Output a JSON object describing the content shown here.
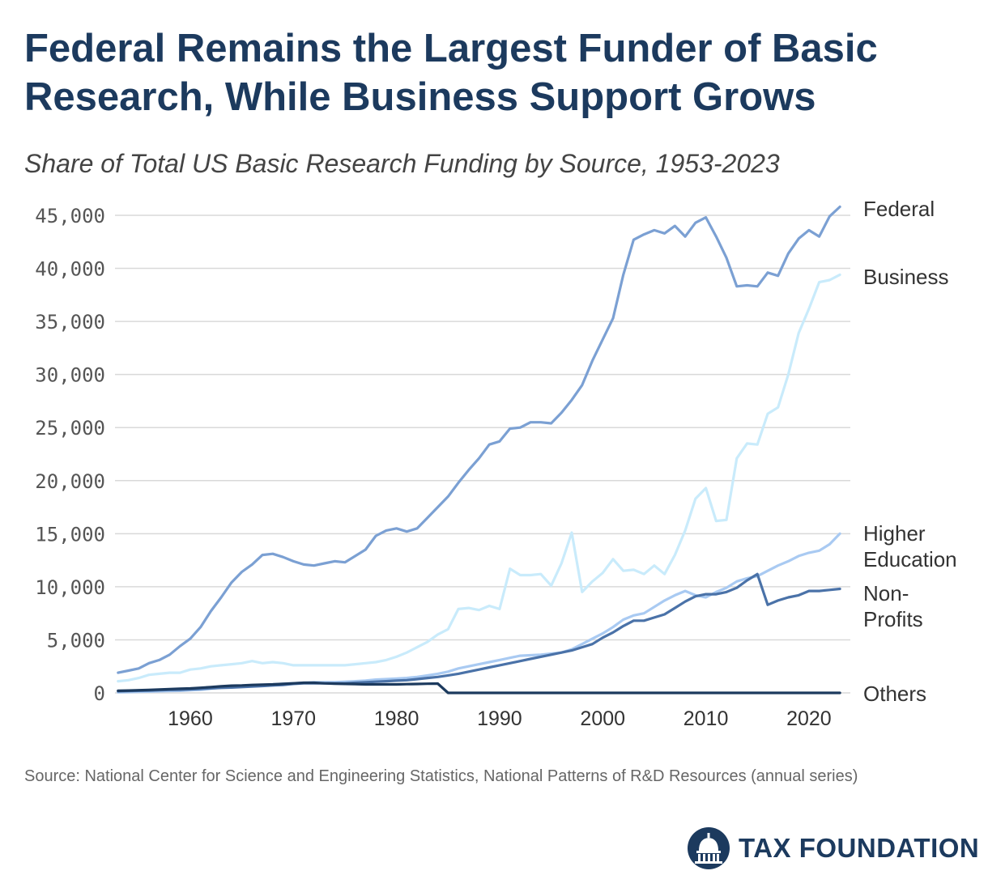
{
  "header": {
    "title": "Federal Remains the Largest Funder of Basic Research, While Business Support Grows",
    "subtitle": "Share of Total US Basic Research Funding by Source, 1953-2023"
  },
  "footer": {
    "source": "Source: National Center for Science and Engineering Statistics, National Patterns of R&D Resources (annual series)",
    "logo_text": "TAX FOUNDATION",
    "logo_icon": "capitol-dome-icon"
  },
  "colors": {
    "federal": "#7ba0d3",
    "business": "#c9ebfb",
    "higher_education": "#a9caf2",
    "non_profits": "#4a72a8",
    "others": "#1c3a5e",
    "grid": "#d9d9d9",
    "title": "#1c3a5e"
  },
  "chart_data": {
    "type": "line",
    "title": "Federal Remains the Largest Funder of Basic Research, While Business Support Grows",
    "subtitle": "Share of Total US Basic Research Funding by Source, 1953-2023",
    "x_start": 1953,
    "xlim": [
      1953,
      2023
    ],
    "ylim": [
      0,
      45000
    ],
    "x_ticks": [
      1960,
      1970,
      1980,
      1990,
      2000,
      2010,
      2020
    ],
    "y_ticks": [
      0,
      5000,
      10000,
      15000,
      20000,
      25000,
      30000,
      35000,
      40000,
      45000
    ],
    "y_tick_labels": [
      "0",
      "5,000",
      "10,000",
      "15,000",
      "20,000",
      "25,000",
      "30,000",
      "35,000",
      "40,000",
      "45,000"
    ],
    "grid": true,
    "legend": "direct labels at right end of lines",
    "series": [
      {
        "name": "Federal",
        "label_lines": [
          "Federal"
        ],
        "color_key": "federal",
        "values": [
          1900,
          2100,
          2300,
          2800,
          3100,
          3600,
          4400,
          5100,
          6200,
          7700,
          9000,
          10400,
          11400,
          12100,
          13000,
          13100,
          12800,
          12400,
          12100,
          12000,
          12200,
          12400,
          12300,
          12900,
          13500,
          14800,
          15300,
          15500,
          15200,
          15500,
          16500,
          17500,
          18500,
          19800,
          21000,
          22100,
          23400,
          23700,
          24900,
          25000,
          25500,
          25500,
          25400,
          26400,
          27600,
          29000,
          31300,
          33300,
          35300,
          39400,
          42700,
          43200,
          43600,
          43300,
          44000,
          43000,
          44300,
          44800,
          43000,
          41000,
          38300,
          38400,
          38300,
          39600,
          39300,
          41400,
          42800,
          43600,
          43000,
          44900,
          45800
        ]
      },
      {
        "name": "Business",
        "label_lines": [
          "Business"
        ],
        "color_key": "business",
        "values": [
          1100,
          1200,
          1400,
          1700,
          1800,
          1900,
          1900,
          2200,
          2300,
          2500,
          2600,
          2700,
          2800,
          3000,
          2800,
          2900,
          2800,
          2600,
          2600,
          2600,
          2600,
          2600,
          2600,
          2700,
          2800,
          2900,
          3100,
          3400,
          3800,
          4300,
          4800,
          5500,
          6000,
          7900,
          8000,
          7800,
          8200,
          7900,
          11700,
          11100,
          11100,
          11200,
          10100,
          12200,
          15100,
          9500,
          10500,
          11300,
          12600,
          11500,
          11600,
          11200,
          12000,
          11200,
          13000,
          15300,
          18300,
          19300,
          16200,
          16300,
          22100,
          23500,
          23400,
          26300,
          26900,
          30000,
          33900,
          36200,
          38700,
          38900,
          39400
        ]
      },
      {
        "name": "Higher Education",
        "label_lines": [
          "Higher",
          "Education"
        ],
        "color_key": "higher_education",
        "values": [
          50,
          80,
          100,
          120,
          150,
          180,
          200,
          250,
          300,
          400,
          500,
          550,
          600,
          650,
          700,
          800,
          850,
          900,
          950,
          1000,
          1000,
          1000,
          1050,
          1100,
          1150,
          1250,
          1300,
          1350,
          1400,
          1500,
          1650,
          1800,
          2000,
          2300,
          2500,
          2700,
          2900,
          3100,
          3300,
          3500,
          3550,
          3600,
          3700,
          3800,
          4100,
          4600,
          5100,
          5600,
          6200,
          6900,
          7300,
          7500,
          8100,
          8700,
          9200,
          9600,
          9200,
          9000,
          9500,
          9900,
          10500,
          10800,
          11000,
          11500,
          12000,
          12400,
          12900,
          13200,
          13400,
          14000,
          15000
        ]
      },
      {
        "name": "Non-Profits",
        "label_lines": [
          "Non-",
          "Profits"
        ],
        "color_key": "non_profits",
        "values": [
          150,
          180,
          200,
          220,
          250,
          280,
          300,
          330,
          380,
          430,
          470,
          500,
          550,
          600,
          650,
          700,
          750,
          850,
          900,
          900,
          900,
          900,
          900,
          950,
          1000,
          1050,
          1100,
          1150,
          1200,
          1300,
          1400,
          1500,
          1650,
          1800,
          2000,
          2200,
          2400,
          2600,
          2800,
          3000,
          3200,
          3400,
          3600,
          3800,
          4000,
          4300,
          4600,
          5200,
          5700,
          6300,
          6800,
          6800,
          7100,
          7400,
          8000,
          8600,
          9100,
          9300,
          9300,
          9500,
          9900,
          10600,
          11200,
          8300,
          8700,
          9000,
          9200,
          9600,
          9600,
          9700,
          9800
        ]
      },
      {
        "name": "Others",
        "label_lines": [
          "Others"
        ],
        "color_key": "others",
        "values": [
          200,
          220,
          250,
          280,
          320,
          360,
          400,
          420,
          480,
          550,
          620,
          680,
          700,
          750,
          780,
          800,
          850,
          900,
          950,
          950,
          900,
          870,
          850,
          830,
          800,
          800,
          800,
          800,
          820,
          840,
          860,
          880,
          0,
          0,
          0,
          0,
          0,
          0,
          0,
          0,
          0,
          0,
          0,
          0,
          0,
          0,
          0,
          0,
          0,
          0,
          0,
          0,
          0,
          0,
          0,
          0,
          0,
          0,
          0,
          0,
          0,
          0,
          0,
          0,
          0,
          0,
          0,
          0,
          0,
          0,
          0
        ]
      }
    ]
  }
}
